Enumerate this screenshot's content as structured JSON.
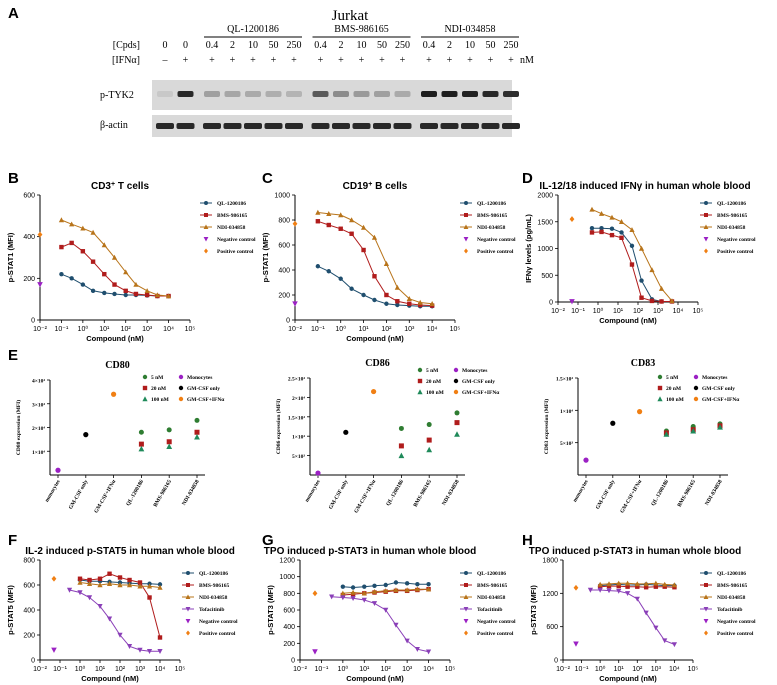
{
  "panel_a": {
    "letter": "A",
    "cell_line": "Jurkat",
    "cpds_label": "[Cpds]",
    "ifn_label": "[IFNα]",
    "unit": "nM",
    "groups": [
      "QL-1200186",
      "BMS-986165",
      "NDI-034858"
    ],
    "conc_row": [
      "0",
      "0",
      "0.4",
      "2",
      "10",
      "50",
      "250",
      "0.4",
      "2",
      "10",
      "50",
      "250",
      "0.4",
      "2",
      "10",
      "50",
      "250"
    ],
    "ifn_row": [
      "–",
      "+",
      "+",
      "+",
      "+",
      "+",
      "+",
      "+",
      "+",
      "+",
      "+",
      "+",
      "+",
      "+",
      "+",
      "+",
      "+"
    ],
    "blot_labels": [
      "p-TYK2",
      "β-actin"
    ],
    "ptyk2_band_intensity": [
      0.05,
      0.85,
      0.25,
      0.22,
      0.2,
      0.18,
      0.15,
      0.6,
      0.35,
      0.28,
      0.25,
      0.2,
      0.9,
      0.9,
      0.88,
      0.85,
      0.82
    ],
    "actin_band_intensity": [
      0.85,
      0.85,
      0.85,
      0.85,
      0.85,
      0.85,
      0.85,
      0.85,
      0.85,
      0.85,
      0.85,
      0.85,
      0.85,
      0.85,
      0.85,
      0.85,
      0.85
    ]
  },
  "legend_sets": {
    "bc": [
      "QL-1200186",
      "BMS-986165",
      "NDI-034858",
      "Negative control",
      "Positive control"
    ],
    "fgh": [
      "QL-1200186",
      "BMS-986165",
      "NDI-034858",
      "Tofacitinib",
      "Negative control",
      "Positive control"
    ],
    "e": [
      "5 nM",
      "20 nM",
      "100 nM",
      "Monocytes",
      "GM-CSF only",
      "GM-CSF+IFNα"
    ]
  },
  "colors": {
    "ql": "#1f4e6e",
    "bms": "#b01c1c",
    "ndi": "#b8741a",
    "tofa": "#8a3fb8",
    "neg": "#9b21c4",
    "pos": "#f07f13",
    "black": "#000000",
    "green5": "#2f7d32",
    "red20": "#b01c1c",
    "teal100": "#1f8a5a"
  },
  "chart_data": [
    {
      "id": "B",
      "type": "line",
      "title": "CD3",
      "title_sup": "+",
      "title_rest": " T cells",
      "xlabel": "Compound (nM)",
      "ylabel": "p-STAT1 (MFI)",
      "xscale": "log",
      "xlim": [
        -2,
        5
      ],
      "ylim": [
        0,
        600
      ],
      "yticks": [
        0,
        200,
        400,
        600
      ],
      "ytick_labels": [
        "0",
        "200",
        "400",
        "600"
      ],
      "series": [
        {
          "name": "QL-1200186",
          "x": [
            0.1,
            0.3,
            1,
            3,
            10,
            30,
            100,
            300,
            1000,
            3000,
            10000
          ],
          "y": [
            220,
            200,
            170,
            140,
            130,
            125,
            120,
            120,
            118,
            115,
            115
          ]
        },
        {
          "name": "BMS-986165",
          "x": [
            0.1,
            0.3,
            1,
            3,
            10,
            30,
            100,
            300,
            1000,
            3000,
            10000
          ],
          "y": [
            350,
            370,
            330,
            280,
            220,
            170,
            140,
            125,
            120,
            115,
            115
          ]
        },
        {
          "name": "NDI-034858",
          "x": [
            0.1,
            0.3,
            1,
            3,
            10,
            30,
            100,
            300,
            1000,
            3000,
            10000
          ],
          "y": [
            480,
            460,
            440,
            420,
            360,
            300,
            230,
            170,
            140,
            120,
            115
          ]
        }
      ],
      "controls": [
        {
          "name": "Negative control",
          "x": 0.01,
          "y": 170
        },
        {
          "name": "Positive control",
          "x": 0.01,
          "y": 410
        }
      ]
    },
    {
      "id": "C",
      "type": "line",
      "title": "CD19",
      "title_sup": "+",
      "title_rest": " B cells",
      "xlabel": "Compound (nM)",
      "ylabel": "p-STAT1 (MFI)",
      "xscale": "log",
      "xlim": [
        -2,
        5
      ],
      "ylim": [
        0,
        1000
      ],
      "yticks": [
        0,
        200,
        400,
        600,
        800,
        1000
      ],
      "ytick_labels": [
        "0",
        "200",
        "400",
        "600",
        "800",
        "1000"
      ],
      "series": [
        {
          "name": "QL-1200186",
          "x": [
            0.1,
            0.3,
            1,
            3,
            10,
            30,
            100,
            300,
            1000,
            3000,
            10000
          ],
          "y": [
            430,
            390,
            330,
            250,
            200,
            160,
            130,
            120,
            115,
            110,
            110
          ]
        },
        {
          "name": "BMS-986165",
          "x": [
            0.1,
            0.3,
            1,
            3,
            10,
            30,
            100,
            300,
            1000,
            3000,
            10000
          ],
          "y": [
            790,
            760,
            730,
            690,
            560,
            350,
            200,
            150,
            130,
            120,
            115
          ]
        },
        {
          "name": "NDI-034858",
          "x": [
            0.1,
            0.3,
            1,
            3,
            10,
            30,
            100,
            300,
            1000,
            3000,
            10000
          ],
          "y": [
            860,
            850,
            840,
            800,
            740,
            660,
            450,
            260,
            170,
            140,
            130
          ]
        }
      ],
      "controls": [
        {
          "name": "Negative control",
          "x": 0.01,
          "y": 130
        },
        {
          "name": "Positive control",
          "x": 0.01,
          "y": 770
        }
      ]
    },
    {
      "id": "D",
      "type": "line",
      "title": "IL-12/18 induced IFNγ in human whole blood",
      "xlabel": "Compound (nM)",
      "ylabel": "IFNγ levels (pg/mL)",
      "xscale": "log",
      "xlim": [
        -2,
        5
      ],
      "ylim": [
        0,
        2000
      ],
      "yticks": [
        0,
        500,
        1000,
        1500,
        2000
      ],
      "ytick_labels": [
        "0",
        "500",
        "1000",
        "1500",
        "2000"
      ],
      "series": [
        {
          "name": "QL-1200186",
          "x": [
            0.5,
            1.5,
            5,
            15,
            50,
            150,
            500,
            1500,
            5000
          ],
          "y": [
            1380,
            1380,
            1370,
            1300,
            1050,
            400,
            50,
            10,
            10
          ]
        },
        {
          "name": "BMS-986165",
          "x": [
            0.5,
            1.5,
            5,
            15,
            50,
            150,
            500,
            1500,
            5000
          ],
          "y": [
            1300,
            1310,
            1250,
            1200,
            700,
            80,
            20,
            10,
            10
          ]
        },
        {
          "name": "NDI-034858",
          "x": [
            0.5,
            1.5,
            5,
            15,
            50,
            150,
            500,
            1500,
            5000
          ],
          "y": [
            1730,
            1650,
            1580,
            1500,
            1350,
            1000,
            600,
            250,
            20
          ]
        }
      ],
      "controls": [
        {
          "name": "Negative control",
          "x": 0.05,
          "y": 10
        },
        {
          "name": "Positive control",
          "x": 0.05,
          "y": 1550
        }
      ]
    },
    {
      "id": "E1",
      "type": "scatter",
      "title": "CD80",
      "ylabel": "CD80 expression (MFI)",
      "ylim": [
        0,
        40000
      ],
      "yticks": [
        10000,
        20000,
        30000,
        40000
      ],
      "ytick_labels": [
        "1×10⁴",
        "2×10⁴",
        "3×10⁴",
        "4×10⁴"
      ],
      "categories": [
        "monocytes",
        "GM-CSF only",
        "GM-CSF+IFNα",
        "QL-1200186",
        "BMS-986165",
        "NDI-034858"
      ],
      "single": [
        {
          "cat": 0,
          "y": 2000,
          "kind": "Monocytes"
        },
        {
          "cat": 1,
          "y": 17000,
          "kind": "GM-CSF only"
        },
        {
          "cat": 2,
          "y": 34000,
          "kind": "GM-CSF+IFNα"
        }
      ],
      "doses": [
        {
          "cat": 3,
          "values": [
            18000,
            13000,
            11000
          ]
        },
        {
          "cat": 4,
          "values": [
            19000,
            14000,
            12000
          ]
        },
        {
          "cat": 5,
          "values": [
            23000,
            18000,
            16000
          ]
        }
      ]
    },
    {
      "id": "E2",
      "type": "scatter",
      "title": "CD86",
      "ylabel": "CD86 expression (MFI)",
      "ylim": [
        0,
        25000
      ],
      "yticks": [
        5000,
        10000,
        15000,
        20000,
        25000
      ],
      "ytick_labels": [
        "5×10³",
        "1×10⁴",
        "1.5×10⁴",
        "2×10⁴",
        "2.5×10⁴"
      ],
      "categories": [
        "monocytes",
        "GM-CSF only",
        "GM-CSF+IFNα",
        "QL-1200186",
        "BMS-986165",
        "NDI-034858"
      ],
      "single": [
        {
          "cat": 0,
          "y": 500,
          "kind": "Monocytes"
        },
        {
          "cat": 1,
          "y": 11000,
          "kind": "GM-CSF only"
        },
        {
          "cat": 2,
          "y": 21500,
          "kind": "GM-CSF+IFNα"
        }
      ],
      "doses": [
        {
          "cat": 3,
          "values": [
            12000,
            7500,
            5000
          ]
        },
        {
          "cat": 4,
          "values": [
            13000,
            9000,
            6500
          ]
        },
        {
          "cat": 5,
          "values": [
            16000,
            13500,
            10500
          ]
        }
      ]
    },
    {
      "id": "E3",
      "type": "scatter",
      "title": "CD83",
      "ylabel": "CD83 expression (MFI)",
      "ylim": [
        0,
        15000
      ],
      "yticks": [
        5000,
        10000,
        15000
      ],
      "ytick_labels": [
        "5×10³",
        "1×10⁴",
        "1.5×10⁴"
      ],
      "categories": [
        "monocytes",
        "GM-CSF only",
        "GM-CSF+IFNα",
        "QL-1200186",
        "BMS-986165",
        "NDI-034858"
      ],
      "single": [
        {
          "cat": 0,
          "y": 2300,
          "kind": "Monocytes"
        },
        {
          "cat": 1,
          "y": 8000,
          "kind": "GM-CSF only"
        },
        {
          "cat": 2,
          "y": 9800,
          "kind": "GM-CSF+IFNα"
        }
      ],
      "doses": [
        {
          "cat": 3,
          "values": [
            6800,
            6500,
            6300
          ]
        },
        {
          "cat": 4,
          "values": [
            7500,
            7000,
            6800
          ]
        },
        {
          "cat": 5,
          "values": [
            7900,
            7600,
            7400
          ]
        }
      ]
    },
    {
      "id": "F",
      "type": "line",
      "title": "IL-2 induced p-STAT5 in human whole blood",
      "xlabel": "Compound (nM)",
      "ylabel": "p-STAT5 (MFI)",
      "xscale": "log",
      "xlim": [
        -2,
        5
      ],
      "ylim": [
        0,
        800
      ],
      "yticks": [
        0,
        200,
        400,
        600,
        800
      ],
      "ytick_labels": [
        "0",
        "200",
        "400",
        "600",
        "800"
      ],
      "series": [
        {
          "name": "QL-1200186",
          "x": [
            1,
            3,
            10,
            30,
            100,
            300,
            1000,
            3000,
            10000
          ],
          "y": [
            640,
            630,
            630,
            625,
            620,
            615,
            610,
            610,
            605
          ]
        },
        {
          "name": "BMS-986165",
          "x": [
            1,
            3,
            10,
            30,
            100,
            300,
            1000,
            3000,
            10000
          ],
          "y": [
            650,
            640,
            650,
            690,
            660,
            640,
            620,
            500,
            180
          ]
        },
        {
          "name": "NDI-034858",
          "x": [
            1,
            3,
            10,
            30,
            100,
            300,
            1000,
            3000,
            10000
          ],
          "y": [
            620,
            610,
            600,
            610,
            600,
            600,
            590,
            590,
            580
          ]
        },
        {
          "name": "Tofacitinib",
          "x": [
            0.3,
            1,
            3,
            10,
            30,
            100,
            300,
            1000,
            3000,
            10000
          ],
          "y": [
            560,
            540,
            500,
            430,
            330,
            200,
            110,
            80,
            70,
            70
          ]
        }
      ],
      "controls": [
        {
          "name": "Negative control",
          "x": 0.05,
          "y": 80
        },
        {
          "name": "Positive control",
          "x": 0.05,
          "y": 650
        }
      ]
    },
    {
      "id": "G",
      "type": "line",
      "title": "TPO induced p-STAT3 in human whole blood",
      "xlabel": "Compound (nM)",
      "ylabel": "p-STAT3 (MFI)",
      "xscale": "log",
      "xlim": [
        -2,
        5
      ],
      "ylim": [
        0,
        1200
      ],
      "yticks": [
        0,
        200,
        400,
        600,
        800,
        1000,
        1200
      ],
      "ytick_labels": [
        "0",
        "200",
        "400",
        "600",
        "800",
        "1000",
        "1200"
      ],
      "series": [
        {
          "name": "QL-1200186",
          "x": [
            1,
            3,
            10,
            30,
            100,
            300,
            1000,
            3000,
            10000
          ],
          "y": [
            880,
            870,
            880,
            890,
            900,
            930,
            920,
            910,
            910
          ]
        },
        {
          "name": "BMS-986165",
          "x": [
            1,
            3,
            10,
            30,
            100,
            300,
            1000,
            3000,
            10000
          ],
          "y": [
            780,
            790,
            800,
            810,
            820,
            830,
            830,
            840,
            850
          ]
        },
        {
          "name": "NDI-034858",
          "x": [
            1,
            3,
            10,
            30,
            100,
            300,
            1000,
            3000,
            10000
          ],
          "y": [
            800,
            810,
            800,
            820,
            830,
            840,
            840,
            850,
            850
          ]
        },
        {
          "name": "Tofacitinib",
          "x": [
            0.3,
            1,
            3,
            10,
            30,
            100,
            300,
            1000,
            3000,
            10000
          ],
          "y": [
            760,
            750,
            740,
            720,
            680,
            600,
            420,
            230,
            130,
            100
          ]
        }
      ],
      "controls": [
        {
          "name": "Negative control",
          "x": 0.05,
          "y": 100
        },
        {
          "name": "Positive control",
          "x": 0.05,
          "y": 800
        }
      ]
    },
    {
      "id": "H",
      "type": "line",
      "title": "TPO induced p-STAT3 in human whole blood",
      "xlabel": "Compound (nM)",
      "ylabel": "p-STAT3 (MFI)",
      "xscale": "log",
      "xlim": [
        -2,
        5
      ],
      "ylim": [
        0,
        1800
      ],
      "yticks": [
        0,
        600,
        1200,
        1800
      ],
      "ytick_labels": [
        "0",
        "600",
        "1200",
        "1800"
      ],
      "series": [
        {
          "name": "QL-1200186",
          "x": [
            1,
            3,
            10,
            30,
            100,
            300,
            1000,
            3000,
            10000
          ],
          "y": [
            1340,
            1350,
            1360,
            1350,
            1350,
            1360,
            1350,
            1340,
            1340
          ]
        },
        {
          "name": "BMS-986165",
          "x": [
            1,
            3,
            10,
            30,
            100,
            300,
            1000,
            3000,
            10000
          ],
          "y": [
            1320,
            1330,
            1330,
            1320,
            1320,
            1310,
            1320,
            1320,
            1310
          ]
        },
        {
          "name": "NDI-034858",
          "x": [
            1,
            3,
            10,
            30,
            100,
            300,
            1000,
            3000,
            10000
          ],
          "y": [
            1360,
            1370,
            1380,
            1380,
            1370,
            1370,
            1380,
            1360,
            1350
          ]
        },
        {
          "name": "Tofacitinib",
          "x": [
            0.3,
            1,
            3,
            10,
            30,
            100,
            300,
            1000,
            3000,
            10000
          ],
          "y": [
            1260,
            1260,
            1250,
            1240,
            1200,
            1100,
            850,
            580,
            350,
            280
          ]
        }
      ],
      "controls": [
        {
          "name": "Negative control",
          "x": 0.05,
          "y": 290
        },
        {
          "name": "Positive control",
          "x": 0.05,
          "y": 1300
        }
      ]
    }
  ]
}
